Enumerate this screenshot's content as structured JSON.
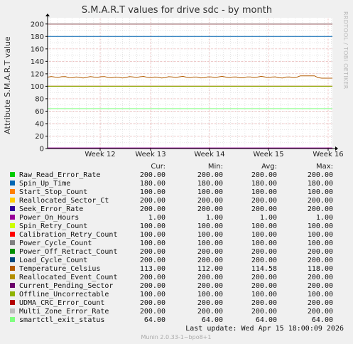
{
  "title": "S.M.A.R.T values for drive sdc - by month",
  "side_label": "RRDTOOL / TOBI OETIKER",
  "legend_header": {
    "cur": "Cur:",
    "min": "Min:",
    "avg": "Avg:",
    "max": "Max:"
  },
  "last_update": "Last update:  Wed Apr 15 18:00:09 2026",
  "version": "Munin 2.0.33-1~bpo8+1",
  "colors": {
    "background": "#f0f0f0",
    "plot_background": "#ffffff",
    "grid_major": "#e8a0a0",
    "grid_minor": "#d4d4d4",
    "axis": "#000000"
  },
  "chart_data": {
    "type": "line",
    "title": "S.M.A.R.T values for drive sdc - by month",
    "ylabel": "Attribute S.M.A.R.T value",
    "ylim": [
      0,
      210
    ],
    "yticks": [
      0,
      20,
      40,
      60,
      80,
      100,
      120,
      140,
      160,
      180,
      200
    ],
    "x_ticks": [
      "Week 12",
      "Week 13",
      "Week 14",
      "Week 15",
      "Week 16"
    ],
    "grid": true,
    "legend_placement": "bottom",
    "series": [
      {
        "name": "Raw_Read_Error_Rate",
        "color": "#00cc00",
        "cur": "200.00",
        "min": "200.00",
        "avg": "200.00",
        "max": "200.00",
        "value": 200
      },
      {
        "name": "Spin_Up_Time",
        "color": "#0066b3",
        "cur": "180.00",
        "min": "180.00",
        "avg": "180.00",
        "max": "180.00",
        "value": 180
      },
      {
        "name": "Start_Stop_Count",
        "color": "#ff8000",
        "cur": "100.00",
        "min": "100.00",
        "avg": "100.00",
        "max": "100.00",
        "value": 100
      },
      {
        "name": "Reallocated_Sector_Ct",
        "color": "#ffcc00",
        "cur": "200.00",
        "min": "200.00",
        "avg": "200.00",
        "max": "200.00",
        "value": 200
      },
      {
        "name": "Seek_Error_Rate",
        "color": "#330099",
        "cur": "200.00",
        "min": "200.00",
        "avg": "200.00",
        "max": "200.00",
        "value": 200
      },
      {
        "name": "Power_On_Hours",
        "color": "#990099",
        "cur": "1.00",
        "min": "1.00",
        "avg": "1.00",
        "max": "1.00",
        "value": 1
      },
      {
        "name": "Spin_Retry_Count",
        "color": "#ccff00",
        "cur": "100.00",
        "min": "100.00",
        "avg": "100.00",
        "max": "100.00",
        "value": 100
      },
      {
        "name": "Calibration_Retry_Count",
        "color": "#ff0000",
        "cur": "100.00",
        "min": "100.00",
        "avg": "100.00",
        "max": "100.00",
        "value": 100
      },
      {
        "name": "Power_Cycle_Count",
        "color": "#808080",
        "cur": "100.00",
        "min": "100.00",
        "avg": "100.00",
        "max": "100.00",
        "value": 100
      },
      {
        "name": "Power_Off_Retract_Count",
        "color": "#008f00",
        "cur": "200.00",
        "min": "200.00",
        "avg": "200.00",
        "max": "200.00",
        "value": 200
      },
      {
        "name": "Load_Cycle_Count",
        "color": "#00487d",
        "cur": "200.00",
        "min": "200.00",
        "avg": "200.00",
        "max": "200.00",
        "value": 200
      },
      {
        "name": "Temperature_Celsius",
        "color": "#b35a00",
        "cur": "113.00",
        "min": "112.00",
        "avg": "114.58",
        "max": "118.00",
        "value": 114.58
      },
      {
        "name": "Reallocated_Event_Count",
        "color": "#b38f00",
        "cur": "200.00",
        "min": "200.00",
        "avg": "200.00",
        "max": "200.00",
        "value": 200
      },
      {
        "name": "Current_Pending_Sector",
        "color": "#6b006b",
        "cur": "200.00",
        "min": "200.00",
        "avg": "200.00",
        "max": "200.00",
        "value": 200
      },
      {
        "name": "Offline_Uncorrectable",
        "color": "#8fb300",
        "cur": "100.00",
        "min": "100.00",
        "avg": "100.00",
        "max": "100.00",
        "value": 100
      },
      {
        "name": "UDMA_CRC_Error_Count",
        "color": "#b30000",
        "cur": "200.00",
        "min": "200.00",
        "avg": "200.00",
        "max": "200.00",
        "value": 200
      },
      {
        "name": "Multi_Zone_Error_Rate",
        "color": "#bebebe",
        "cur": "200.00",
        "min": "200.00",
        "avg": "200.00",
        "max": "200.00",
        "value": 200
      },
      {
        "name": "smartctl_exit_status",
        "color": "#80ff80",
        "cur": "64.00",
        "min": "64.00",
        "avg": "64.00",
        "max": "64.00",
        "value": 64
      }
    ]
  }
}
